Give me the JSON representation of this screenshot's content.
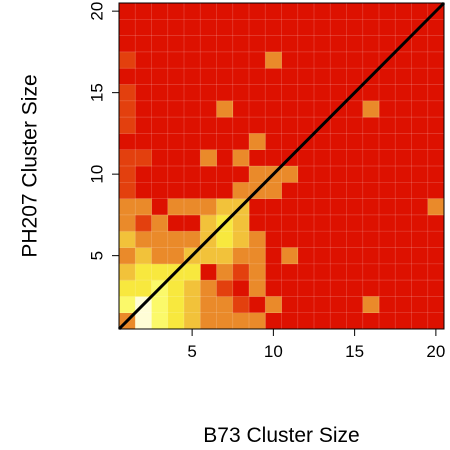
{
  "chart_data": {
    "type": "heatmap",
    "title": "",
    "xlabel": "B73 Cluster Size",
    "ylabel": "PH207 Cluster Size",
    "xlim": [
      0.5,
      20.5
    ],
    "ylim": [
      0.5,
      20.5
    ],
    "xticks": [
      5,
      10,
      15,
      20
    ],
    "yticks": [
      5,
      10,
      15,
      20
    ],
    "grid": true,
    "legend": "none",
    "diagonal_line": {
      "from": [
        0.5,
        0.5
      ],
      "to": [
        20.5,
        20.5
      ],
      "color": "#000000"
    },
    "level_colors": [
      "#dd1100",
      "#e3400e",
      "#ea8a2a",
      "#f2c23a",
      "#f8e83e",
      "#fbf96a",
      "#fffdd6"
    ],
    "cells": [
      {
        "x": 1,
        "y": 1,
        "level": 2
      },
      {
        "x": 2,
        "y": 1,
        "level": 6
      },
      {
        "x": 3,
        "y": 1,
        "level": 5
      },
      {
        "x": 4,
        "y": 1,
        "level": 4
      },
      {
        "x": 5,
        "y": 1,
        "level": 3
      },
      {
        "x": 6,
        "y": 1,
        "level": 2
      },
      {
        "x": 7,
        "y": 1,
        "level": 2
      },
      {
        "x": 8,
        "y": 1,
        "level": 2
      },
      {
        "x": 9,
        "y": 1,
        "level": 2
      },
      {
        "x": 1,
        "y": 2,
        "level": 5
      },
      {
        "x": 2,
        "y": 2,
        "level": 6
      },
      {
        "x": 3,
        "y": 2,
        "level": 5
      },
      {
        "x": 4,
        "y": 2,
        "level": 4
      },
      {
        "x": 5,
        "y": 2,
        "level": 3
      },
      {
        "x": 6,
        "y": 2,
        "level": 2
      },
      {
        "x": 7,
        "y": 2,
        "level": 2
      },
      {
        "x": 8,
        "y": 2,
        "level": 1
      },
      {
        "x": 10,
        "y": 2,
        "level": 2
      },
      {
        "x": 16,
        "y": 2,
        "level": 2
      },
      {
        "x": 1,
        "y": 3,
        "level": 4
      },
      {
        "x": 2,
        "y": 3,
        "level": 4
      },
      {
        "x": 3,
        "y": 3,
        "level": 5
      },
      {
        "x": 4,
        "y": 3,
        "level": 4
      },
      {
        "x": 5,
        "y": 3,
        "level": 3
      },
      {
        "x": 6,
        "y": 3,
        "level": 2
      },
      {
        "x": 7,
        "y": 3,
        "level": 1
      },
      {
        "x": 9,
        "y": 3,
        "level": 2
      },
      {
        "x": 1,
        "y": 4,
        "level": 3
      },
      {
        "x": 2,
        "y": 4,
        "level": 4
      },
      {
        "x": 3,
        "y": 4,
        "level": 4
      },
      {
        "x": 4,
        "y": 4,
        "level": 4
      },
      {
        "x": 5,
        "y": 4,
        "level": 4
      },
      {
        "x": 7,
        "y": 4,
        "level": 2
      },
      {
        "x": 8,
        "y": 4,
        "level": 1
      },
      {
        "x": 9,
        "y": 4,
        "level": 2
      },
      {
        "x": 1,
        "y": 5,
        "level": 2
      },
      {
        "x": 2,
        "y": 5,
        "level": 3
      },
      {
        "x": 3,
        "y": 5,
        "level": 2
      },
      {
        "x": 4,
        "y": 5,
        "level": 2
      },
      {
        "x": 5,
        "y": 5,
        "level": 3
      },
      {
        "x": 6,
        "y": 5,
        "level": 3
      },
      {
        "x": 7,
        "y": 5,
        "level": 3
      },
      {
        "x": 8,
        "y": 5,
        "level": 2
      },
      {
        "x": 9,
        "y": 5,
        "level": 2
      },
      {
        "x": 11,
        "y": 5,
        "level": 2
      },
      {
        "x": 1,
        "y": 6,
        "level": 3
      },
      {
        "x": 2,
        "y": 6,
        "level": 2
      },
      {
        "x": 3,
        "y": 6,
        "level": 2
      },
      {
        "x": 4,
        "y": 6,
        "level": 2
      },
      {
        "x": 5,
        "y": 6,
        "level": 2
      },
      {
        "x": 6,
        "y": 6,
        "level": 3
      },
      {
        "x": 7,
        "y": 6,
        "level": 4
      },
      {
        "x": 8,
        "y": 6,
        "level": 3
      },
      {
        "x": 9,
        "y": 6,
        "level": 2
      },
      {
        "x": 1,
        "y": 7,
        "level": 2
      },
      {
        "x": 2,
        "y": 7,
        "level": 1
      },
      {
        "x": 3,
        "y": 7,
        "level": 2
      },
      {
        "x": 6,
        "y": 7,
        "level": 3
      },
      {
        "x": 7,
        "y": 7,
        "level": 4
      },
      {
        "x": 8,
        "y": 7,
        "level": 3
      },
      {
        "x": 1,
        "y": 8,
        "level": 2
      },
      {
        "x": 2,
        "y": 8,
        "level": 2
      },
      {
        "x": 4,
        "y": 8,
        "level": 2
      },
      {
        "x": 5,
        "y": 8,
        "level": 2
      },
      {
        "x": 6,
        "y": 8,
        "level": 2
      },
      {
        "x": 7,
        "y": 8,
        "level": 3
      },
      {
        "x": 8,
        "y": 8,
        "level": 3
      },
      {
        "x": 20,
        "y": 8,
        "level": 2
      },
      {
        "x": 1,
        "y": 9,
        "level": 1
      },
      {
        "x": 8,
        "y": 9,
        "level": 2
      },
      {
        "x": 9,
        "y": 9,
        "level": 2
      },
      {
        "x": 10,
        "y": 9,
        "level": 2
      },
      {
        "x": 1,
        "y": 10,
        "level": 1
      },
      {
        "x": 9,
        "y": 10,
        "level": 2
      },
      {
        "x": 10,
        "y": 10,
        "level": 2
      },
      {
        "x": 11,
        "y": 10,
        "level": 2
      },
      {
        "x": 1,
        "y": 11,
        "level": 1
      },
      {
        "x": 2,
        "y": 11,
        "level": 1
      },
      {
        "x": 6,
        "y": 11,
        "level": 2
      },
      {
        "x": 8,
        "y": 11,
        "level": 2
      },
      {
        "x": 9,
        "y": 12,
        "level": 2
      },
      {
        "x": 1,
        "y": 14,
        "level": 1
      },
      {
        "x": 7,
        "y": 14,
        "level": 2
      },
      {
        "x": 16,
        "y": 14,
        "level": 2
      },
      {
        "x": 1,
        "y": 17,
        "level": 1
      },
      {
        "x": 10,
        "y": 17,
        "level": 2
      },
      {
        "x": 1,
        "y": 15,
        "level": 1
      },
      {
        "x": 1,
        "y": 13,
        "level": 1
      }
    ]
  }
}
